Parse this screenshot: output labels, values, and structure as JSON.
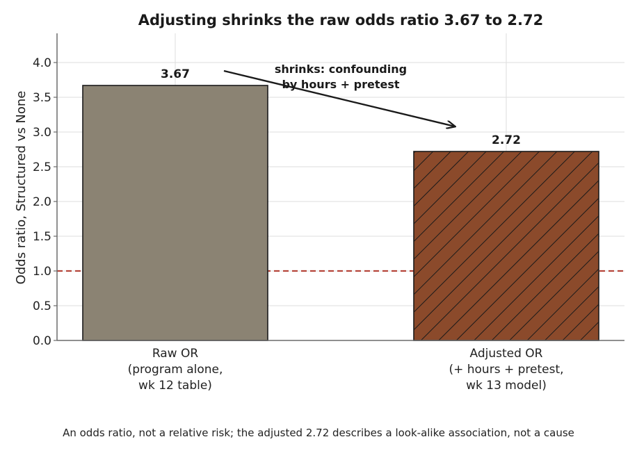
{
  "chart_data": {
    "type": "bar",
    "title": "Adjusting shrinks the raw odds ratio 3.67 to 2.72",
    "ylabel": "Odds ratio, Structured vs None",
    "xlabel": "",
    "ylim": [
      0,
      4.4
    ],
    "yticks": [
      "0.0",
      "0.5",
      "1.0",
      "1.5",
      "2.0",
      "2.5",
      "3.0",
      "3.5",
      "4.0"
    ],
    "grid": "on",
    "categories": [
      [
        "Raw OR",
        "(program alone,",
        "wk 12 table)"
      ],
      [
        "Adjusted OR",
        "(+ hours + pretest,",
        "wk 13 model)"
      ]
    ],
    "values": [
      3.67,
      2.72
    ],
    "value_labels": [
      "3.67",
      "2.72"
    ],
    "bar_colors": [
      "#8b8373",
      "#8b4a2b"
    ],
    "bar_patterns": [
      "solid",
      "diagonal-hatch"
    ],
    "reference_line": {
      "y": 1.0,
      "color": "#b5443a",
      "style": "dashed"
    },
    "annotation": {
      "lines": [
        "shrinks: confounding",
        "by hours + pretest"
      ]
    },
    "caption": "An odds ratio, not a relative risk; the adjusted 2.72 describes a look-alike association, not a cause"
  }
}
